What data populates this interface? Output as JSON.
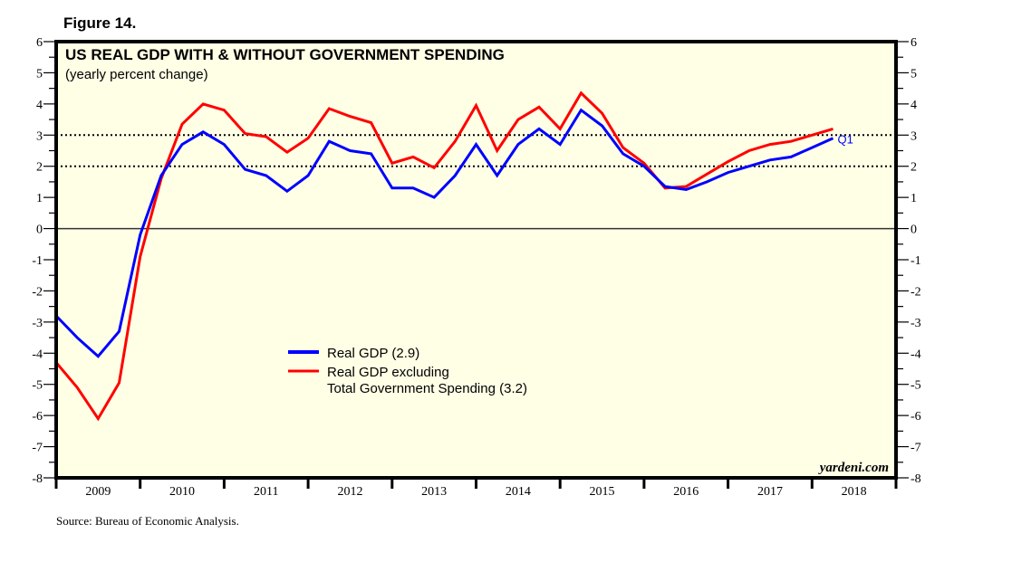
{
  "figure_label": "Figure 14.",
  "source": "Source: Bureau of Economic Analysis.",
  "brand": "yardeni.com",
  "colors": {
    "background": "#ffffe6",
    "real_gdp": "#0000ff",
    "real_gdp_ex_gov": "#ff0000",
    "axis": "#000000"
  },
  "chart_data": {
    "type": "line",
    "title": "US REAL GDP WITH & WITHOUT GOVERNMENT SPENDING",
    "subtitle": "(yearly percent change)",
    "xlabel": "",
    "ylabel": "",
    "ylim": [
      -8,
      6
    ],
    "xlim": [
      2009,
      2019
    ],
    "y_ticks": [
      "6",
      "5",
      "4",
      "3",
      "2",
      "1",
      "0",
      "-1",
      "-2",
      "-3",
      "-4",
      "-5",
      "-6",
      "-7",
      "-8"
    ],
    "x_tick_labels": [
      "2009",
      "2010",
      "2011",
      "2012",
      "2013",
      "2014",
      "2015",
      "2016",
      "2017",
      "2018"
    ],
    "reference_lines": [
      0,
      2,
      3
    ],
    "frequency": "quarterly",
    "x_start": 2009.0,
    "x_step": 0.25,
    "end_annotation": "Q1",
    "legend_position": "center-left",
    "series": [
      {
        "name": "Real GDP (2.9)",
        "color": "#0000ff",
        "values": [
          -2.8,
          -3.5,
          -4.1,
          -3.3,
          -0.2,
          1.7,
          2.7,
          3.1,
          2.7,
          1.9,
          1.7,
          1.2,
          1.7,
          2.8,
          2.5,
          2.4,
          1.3,
          1.3,
          1.0,
          1.7,
          2.7,
          1.7,
          2.7,
          3.2,
          2.7,
          3.8,
          3.3,
          2.4,
          2.0,
          1.35,
          1.25,
          1.5,
          1.8,
          2.0,
          2.2,
          2.3,
          2.6,
          2.9
        ]
      },
      {
        "name": "Real GDP excluding Total Government Spending (3.2)",
        "legend_lines": [
          "Real GDP excluding",
          "Total Government Spending (3.2)"
        ],
        "color": "#ff0000",
        "values": [
          -4.3,
          -5.1,
          -6.1,
          -4.95,
          -0.9,
          1.6,
          3.35,
          4.0,
          3.8,
          3.05,
          2.95,
          2.45,
          2.9,
          3.85,
          3.6,
          3.4,
          2.1,
          2.3,
          1.95,
          2.8,
          3.95,
          2.5,
          3.5,
          3.9,
          3.2,
          4.35,
          3.7,
          2.6,
          2.1,
          1.3,
          1.35,
          1.75,
          2.15,
          2.5,
          2.7,
          2.8,
          3.0,
          3.2
        ]
      }
    ]
  }
}
